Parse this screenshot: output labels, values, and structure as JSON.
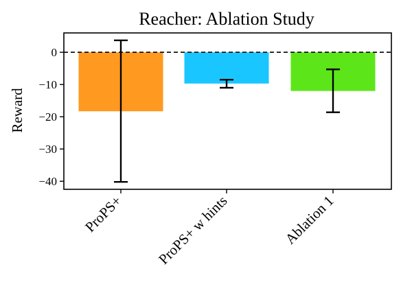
{
  "chart_data": {
    "type": "bar",
    "title": "Reacher: Ablation Study",
    "xlabel": "",
    "ylabel": "Reward",
    "categories": [
      "ProPS+",
      "ProPS+ w hints",
      "Ablation 1"
    ],
    "values": [
      -18.3,
      -9.7,
      -12.0
    ],
    "error_low": [
      -40.2,
      -11.0,
      -18.6
    ],
    "error_high": [
      3.7,
      -8.5,
      -5.3
    ],
    "colors": [
      "#ff991f",
      "#1ac6ff",
      "#5ce619"
    ],
    "ylim": [
      -42.5,
      6.0
    ],
    "yticks": [
      0,
      -10,
      -20,
      -30,
      -40
    ],
    "ytick_labels": [
      "0",
      "−10",
      "−20",
      "−30",
      "−40"
    ],
    "reference_line": {
      "y": 0,
      "style": "dashed",
      "color": "#000000"
    },
    "grid": false,
    "legend": "none"
  }
}
